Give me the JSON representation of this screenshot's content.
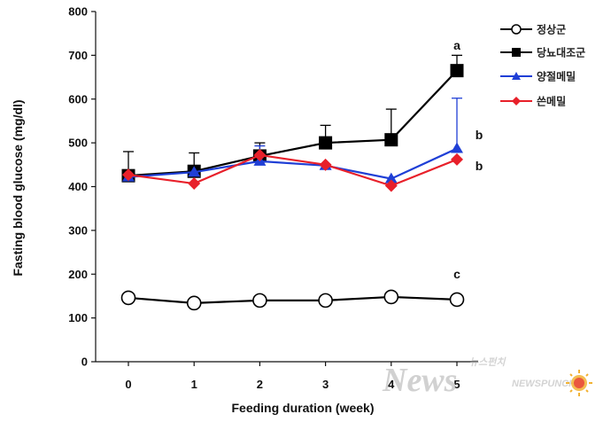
{
  "chart_data": {
    "type": "line",
    "title": "",
    "xlabel": "Feeding duration  (week)",
    "ylabel": "Fasting blood glucose  (mg/dl)",
    "ylim": [
      0,
      800
    ],
    "y_ticks": [
      "0",
      "100",
      "200",
      "300",
      "400",
      "500",
      "600",
      "700",
      "800"
    ],
    "x": [
      0,
      1,
      2,
      3,
      4,
      5
    ],
    "x_ticks": [
      "0",
      "1",
      "2",
      "3",
      "4",
      "5"
    ],
    "grid": false,
    "legend_position": "top-right",
    "series": [
      {
        "name": "정상군",
        "marker": "circle-open",
        "color": "#000000",
        "values": [
          146,
          134,
          140,
          140,
          148,
          142
        ],
        "error": [
          0,
          0,
          0,
          0,
          0,
          0
        ]
      },
      {
        "name": "당뇨대조군",
        "marker": "square",
        "color": "#000000",
        "values": [
          425,
          435,
          470,
          500,
          507,
          665
        ],
        "error": [
          55,
          42,
          30,
          40,
          70,
          35
        ]
      },
      {
        "name": "양절메밀",
        "marker": "triangle",
        "color": "#1f3fd6",
        "values": [
          422,
          433,
          458,
          448,
          418,
          487
        ],
        "error": [
          0,
          0,
          35,
          0,
          0,
          115
        ]
      },
      {
        "name": "쓴메밀",
        "marker": "diamond",
        "color": "#e8202a",
        "values": [
          427,
          407,
          472,
          450,
          402,
          462
        ],
        "error": [
          0,
          0,
          0,
          0,
          0,
          0
        ]
      }
    ],
    "annotations": [
      {
        "text": "a",
        "series": "당뇨대조군"
      },
      {
        "text": "b",
        "series": "양절메밀"
      },
      {
        "text": "b",
        "series": "쓴메밀"
      },
      {
        "text": "c",
        "series": "정상군"
      }
    ]
  },
  "watermark": {
    "main": "News",
    "brand": "NEWSPUNCH",
    "korean": "뉴스펀치"
  }
}
